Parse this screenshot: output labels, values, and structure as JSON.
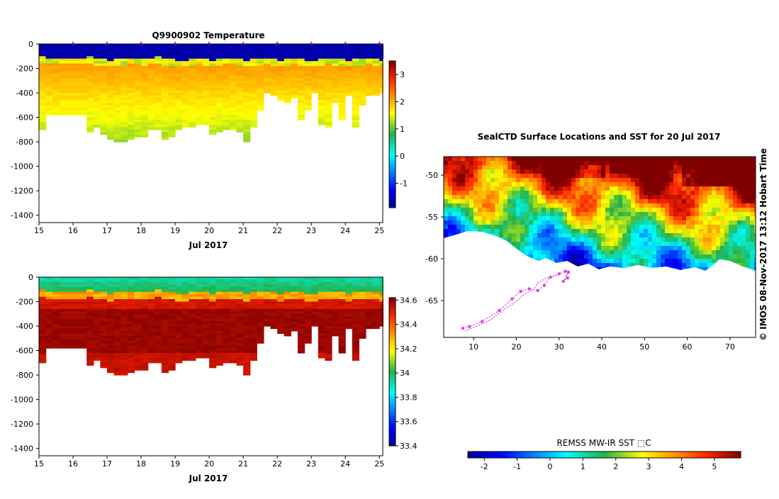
{
  "colors": {
    "deep_blue": "#0b1f8c",
    "mask_white": "#ffffff",
    "track_magenta": "#e23ce0"
  },
  "chart_data": [
    {
      "id": "temperature",
      "type": "heatmap",
      "title": "Q9900902  Temperature",
      "xlabel": "Jul 2017",
      "ylabel": "",
      "x_ticks": [
        "15",
        "16",
        "17",
        "18",
        "19",
        "20",
        "21",
        "22",
        "23",
        "24",
        "25"
      ],
      "y_ticks": [
        "0",
        "-200",
        "-400",
        "-600",
        "-800",
        "-1000",
        "-1200",
        "-1400"
      ],
      "xlim": [
        15,
        25.1
      ],
      "ylim": [
        -1460,
        0
      ],
      "colorbar": {
        "ticks": [
          "3",
          "2",
          "1",
          "0",
          "-1"
        ],
        "min": -1.9,
        "max": 3.5
      },
      "profiles": {
        "times": [
          15,
          15.2,
          15.4,
          15.6,
          16.4,
          16.6,
          16.8,
          17,
          17.2,
          17.4,
          17.6,
          17.8,
          18,
          18.2,
          18.4,
          18.6,
          18.8,
          19,
          19.2,
          19.4,
          19.6,
          19.8,
          20,
          20.2,
          20.4,
          20.6,
          20.8,
          21,
          21.2,
          21.4,
          21.6,
          21.8,
          22,
          22.2,
          22.4,
          22.6,
          22.8,
          23,
          23.2,
          23.4,
          23.6,
          23.8,
          24,
          24.2,
          24.4,
          24.6,
          24.8,
          25,
          25.1
        ],
        "max_depth": [
          700,
          580,
          580,
          580,
          720,
          680,
          740,
          780,
          800,
          800,
          780,
          760,
          760,
          700,
          700,
          780,
          760,
          700,
          680,
          680,
          660,
          660,
          740,
          720,
          700,
          700,
          720,
          800,
          680,
          540,
          400,
          420,
          460,
          480,
          440,
          620,
          540,
          400,
          660,
          680,
          480,
          620,
          420,
          680,
          500,
          420,
          420,
          400,
          400
        ],
        "surface_value": -1.8,
        "thermocline_depth": [
          120,
          130,
          125,
          130,
          120,
          140,
          135,
          150,
          140,
          135,
          130,
          125,
          140,
          130,
          120,
          135,
          140,
          150,
          145,
          140,
          130,
          135,
          145,
          140,
          130,
          125,
          140,
          150,
          140,
          135,
          130,
          140,
          145,
          135,
          130,
          140,
          150,
          145,
          140,
          130,
          135,
          140,
          150,
          140,
          135,
          130,
          140,
          145,
          130
        ],
        "upper_value": 2.0,
        "deep_value": 1.0
      },
      "gap": [
        15.8,
        16.4
      ],
      "float_markers": [
        16,
        17,
        18,
        19,
        20,
        21,
        22,
        23,
        24,
        25
      ]
    },
    {
      "id": "salinity",
      "type": "heatmap",
      "title": "",
      "xlabel": "Jul 2017",
      "ylabel": "",
      "x_ticks": [
        "15",
        "16",
        "17",
        "18",
        "19",
        "20",
        "21",
        "22",
        "23",
        "24",
        "25"
      ],
      "y_ticks": [
        "0",
        "-200",
        "-400",
        "-600",
        "-800",
        "-1000",
        "-1200",
        "-1400"
      ],
      "xlim": [
        15,
        25.1
      ],
      "ylim": [
        -1460,
        0
      ],
      "colorbar": {
        "ticks": [
          "34.6",
          "34.4",
          "34.2",
          "34",
          "33.8",
          "33.6",
          "33.4"
        ],
        "min": 33.4,
        "max": 34.62
      },
      "profiles": {
        "surface_value": 33.9,
        "upper_value": 34.45,
        "deep_value": 34.6
      },
      "gap": [
        15.8,
        16.4
      ]
    },
    {
      "id": "sst_map",
      "type": "heatmap",
      "title": "SealCTD Surface Locations and SST for 20 Jul 2017",
      "xlabel": "",
      "ylabel": "",
      "x_ticks": [
        "10",
        "20",
        "30",
        "40",
        "50",
        "60",
        "70"
      ],
      "y_ticks": [
        "-50",
        "-55",
        "-60",
        "-65"
      ],
      "xlim": [
        3,
        76
      ],
      "ylim": [
        -69.4,
        -47.8
      ],
      "colorbar": {
        "label": "REMSS MW-IR SST ⬚C",
        "ticks": [
          "-2",
          "-1",
          "0",
          "1",
          "2",
          "3",
          "4",
          "5"
        ],
        "min": -2.5,
        "max": 5.8
      },
      "track": {
        "lon": [
          7.5,
          9,
          12,
          16,
          19,
          21,
          23,
          25,
          26.5,
          28,
          30,
          31.5,
          32,
          31,
          32.2
        ],
        "lat": [
          -68.3,
          -68.1,
          -67.5,
          -66.2,
          -64.8,
          -63.9,
          -63.6,
          -63.8,
          -63.2,
          -62.2,
          -61.8,
          -61.5,
          -62.3,
          -62.7,
          -61.6
        ]
      },
      "track_alt": {
        "lon": [
          8,
          11,
          14,
          17,
          20,
          22,
          24,
          25,
          27,
          30
        ],
        "lat": [
          -68.6,
          -68.0,
          -67.3,
          -66.1,
          -65.1,
          -64.2,
          -63.7,
          -62.9,
          -62.3,
          -61.9
        ]
      }
    }
  ],
  "side_label": "©  IMOS 08-Nov-2017 13:12 Hobart Time"
}
